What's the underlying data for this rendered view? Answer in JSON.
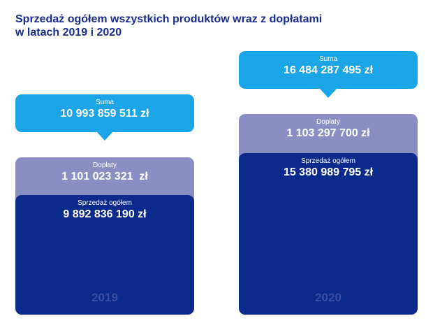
{
  "title": {
    "line1": "Sprzedaż ogółem wszystkich produktów wraz z dopłatami",
    "line2": "w latach 2019 i 2020"
  },
  "panels": [
    {
      "year": "2019",
      "total_label": "Suma",
      "total": "10 993 859 511 zł",
      "subsidies_label": "Dopłaty",
      "subsidies": "1 101 023 321  zł",
      "sales_label": "Sprzedaż ogółem",
      "sales": "9 892 836 190 zł"
    },
    {
      "year": "2020",
      "total_label": "Suma",
      "total": "16 484 287 495 zł",
      "subsidies_label": "Dopłaty",
      "subsidies": "1 103 297 700 zł",
      "sales_label": "Sprzedaż ogółem",
      "sales": "15 380 989 795 zł"
    }
  ]
}
